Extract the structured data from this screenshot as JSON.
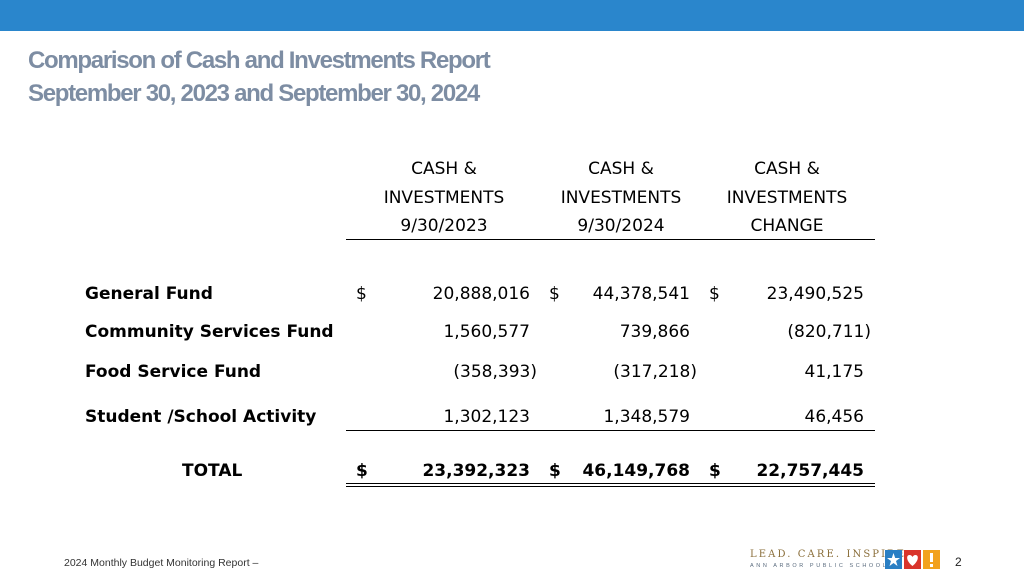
{
  "header": {
    "accent_color": "#2a86cc"
  },
  "title": {
    "line1": "Comparison of Cash and Investments Report",
    "line2": "September 30, 2023 and September 30, 2024"
  },
  "columns": [
    {
      "line1": "CASH &",
      "line2": "INVESTMENTS",
      "line3": "9/30/2023"
    },
    {
      "line1": "CASH &",
      "line2": "INVESTMENTS",
      "line3": "9/30/2024"
    },
    {
      "line1": "CASH &",
      "line2": "INVESTMENTS",
      "line3": "CHANGE"
    }
  ],
  "rows": [
    {
      "label": "General Fund",
      "c1_sign": "$",
      "c1": "20,888,016",
      "c2_sign": "$",
      "c2": "44,378,541",
      "c3_sign": "$",
      "c3": "23,490,525"
    },
    {
      "label": "Community Services Fund",
      "c1": "1,560,577",
      "c2": "739,866",
      "c3": "(820,711)"
    },
    {
      "label": "Food Service Fund",
      "c1": "(358,393)",
      "c2": "(317,218)",
      "c3": "41,175"
    },
    {
      "label": "Student /School Activity",
      "c1": "1,302,123",
      "c2": "1,348,579",
      "c3": "46,456"
    }
  ],
  "total": {
    "label": "TOTAL",
    "c1_sign": "$",
    "c1": "23,392,323",
    "c2_sign": "$",
    "c2": "46,149,768",
    "c3_sign": "$",
    "c3": "22,757,445"
  },
  "footer": {
    "report_name": "2024 Monthly Budget Monitoring Report –",
    "slogan": "LEAD. CARE. INSPIRE.",
    "org": "ANN ARBOR PUBLIC SCHOOLS",
    "page_number": "2",
    "logo_icon": "star-heart-exclamation-logo-icon"
  }
}
